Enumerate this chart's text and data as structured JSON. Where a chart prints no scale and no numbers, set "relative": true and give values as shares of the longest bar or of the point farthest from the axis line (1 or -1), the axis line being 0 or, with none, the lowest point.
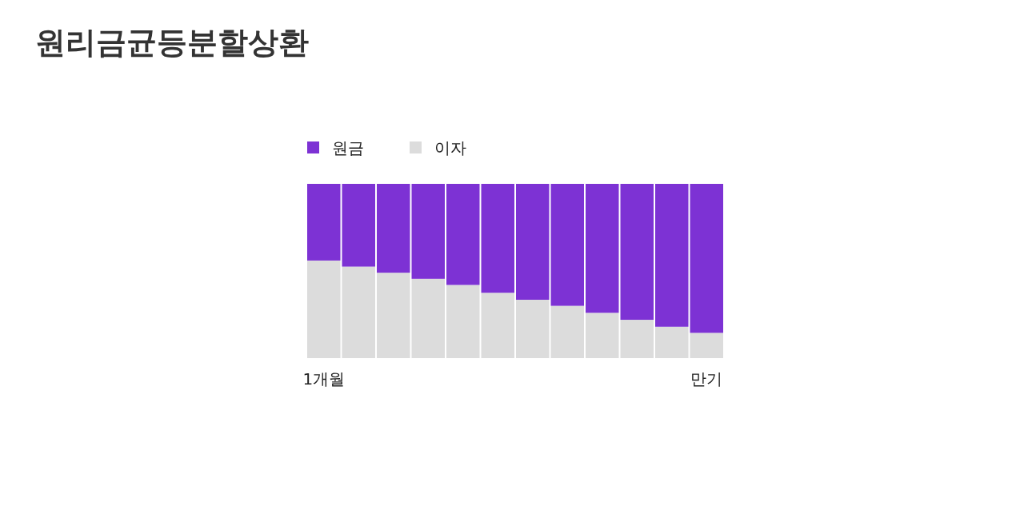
{
  "chart_data": {
    "type": "bar",
    "title": "원리금균등분할상환",
    "stacked": true,
    "relative": true,
    "legend": "top left",
    "grid": false,
    "categories": [
      "1개월",
      null,
      null,
      null,
      null,
      null,
      null,
      null,
      null,
      null,
      null,
      "만기"
    ],
    "series": [
      {
        "name": "이자",
        "color": "#dcdcdc",
        "values": [
          0.56,
          0.525,
          0.49,
          0.455,
          0.42,
          0.375,
          0.335,
          0.3,
          0.26,
          0.22,
          0.18,
          0.145
        ]
      },
      {
        "name": "원금",
        "color": "#7d32d4",
        "values": [
          0.44,
          0.475,
          0.51,
          0.545,
          0.58,
          0.625,
          0.665,
          0.7,
          0.74,
          0.78,
          0.82,
          0.855
        ]
      }
    ]
  }
}
